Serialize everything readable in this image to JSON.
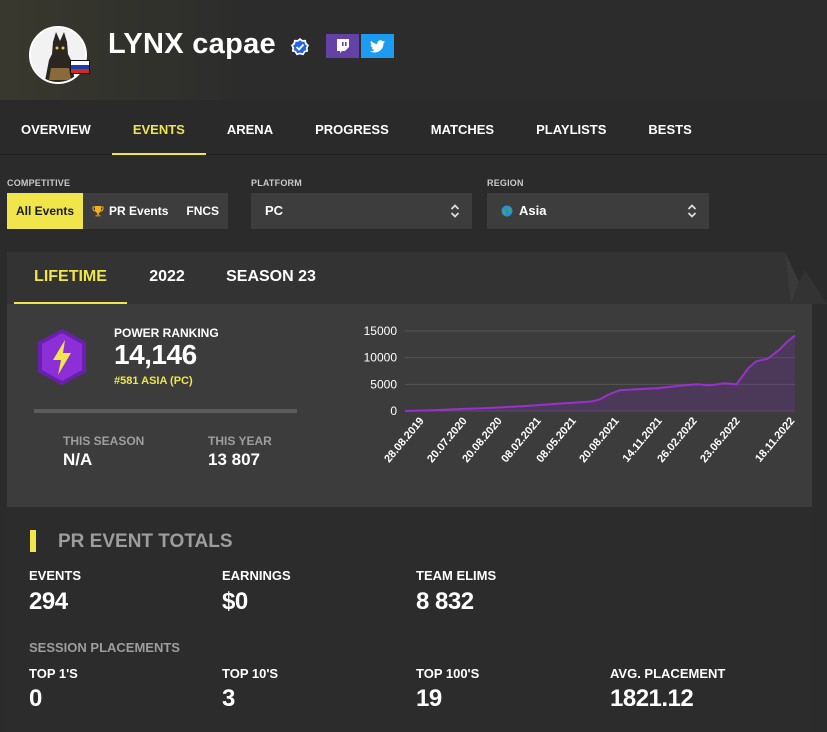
{
  "profile": {
    "name": "LYNX capae",
    "flag_colors": [
      "#ffffff",
      "#1c3fb0",
      "#d52b1e"
    ]
  },
  "nav": {
    "items": [
      "OVERVIEW",
      "EVENTS",
      "ARENA",
      "PROGRESS",
      "MATCHES",
      "PLAYLISTS",
      "BESTS"
    ],
    "active": "EVENTS"
  },
  "filters": {
    "competitive_label": "COMPETITIVE",
    "competitive_options": [
      "All Events",
      "PR Events",
      "FNCS"
    ],
    "competitive_selected": "All Events",
    "platform_label": "PLATFORM",
    "platform_value": "PC",
    "region_label": "REGION",
    "region_value": "Asia"
  },
  "period_tabs": {
    "items": [
      "LIFETIME",
      "2022",
      "SEASON 23"
    ],
    "active": "LIFETIME"
  },
  "power_ranking": {
    "label": "POWER RANKING",
    "value": "14,146",
    "rank": "#581 ASIA (PC)",
    "this_season_label": "THIS SEASON",
    "this_season_value": "N/A",
    "this_year_label": "THIS YEAR",
    "this_year_value": "13 807"
  },
  "chart_data": {
    "type": "area",
    "y_ticks": [
      "15000",
      "10000",
      "5000",
      "0"
    ],
    "ylim": [
      0,
      15000
    ],
    "x_tick_labels": [
      "28.08.2019",
      "20.07.2020",
      "20.08.2020",
      "08.02.2021",
      "08.05.2021",
      "20.08.2021",
      "14.11.2021",
      "26.02.2022",
      "23.06.2022",
      "18.11.2022"
    ],
    "series": [
      {
        "color": "#9b2fd0",
        "points": [
          [
            0,
            0
          ],
          [
            0.05,
            100
          ],
          [
            0.1,
            250
          ],
          [
            0.15,
            400
          ],
          [
            0.2,
            500
          ],
          [
            0.25,
            700
          ],
          [
            0.3,
            900
          ],
          [
            0.35,
            1150
          ],
          [
            0.4,
            1400
          ],
          [
            0.45,
            1650
          ],
          [
            0.48,
            1800
          ],
          [
            0.5,
            2200
          ],
          [
            0.52,
            3000
          ],
          [
            0.55,
            3900
          ],
          [
            0.6,
            4100
          ],
          [
            0.65,
            4300
          ],
          [
            0.7,
            4700
          ],
          [
            0.75,
            5000
          ],
          [
            0.78,
            4800
          ],
          [
            0.82,
            5200
          ],
          [
            0.85,
            5000
          ],
          [
            0.88,
            8000
          ],
          [
            0.9,
            9300
          ],
          [
            0.93,
            9800
          ],
          [
            0.96,
            11500
          ],
          [
            0.98,
            13000
          ],
          [
            1,
            14146
          ]
        ]
      }
    ]
  },
  "totals": {
    "title": "PR EVENT TOTALS",
    "stats": [
      {
        "label": "EVENTS",
        "value": "294"
      },
      {
        "label": "EARNINGS",
        "value": "$0"
      },
      {
        "label": "TEAM ELIMS",
        "value": "8 832"
      }
    ],
    "placements_label": "SESSION PLACEMENTS",
    "placements": [
      {
        "label": "TOP 1'S",
        "value": "0"
      },
      {
        "label": "TOP 10'S",
        "value": "3"
      },
      {
        "label": "TOP 100'S",
        "value": "19"
      },
      {
        "label": "AVG. PLACEMENT",
        "value": "1821.12"
      }
    ]
  }
}
